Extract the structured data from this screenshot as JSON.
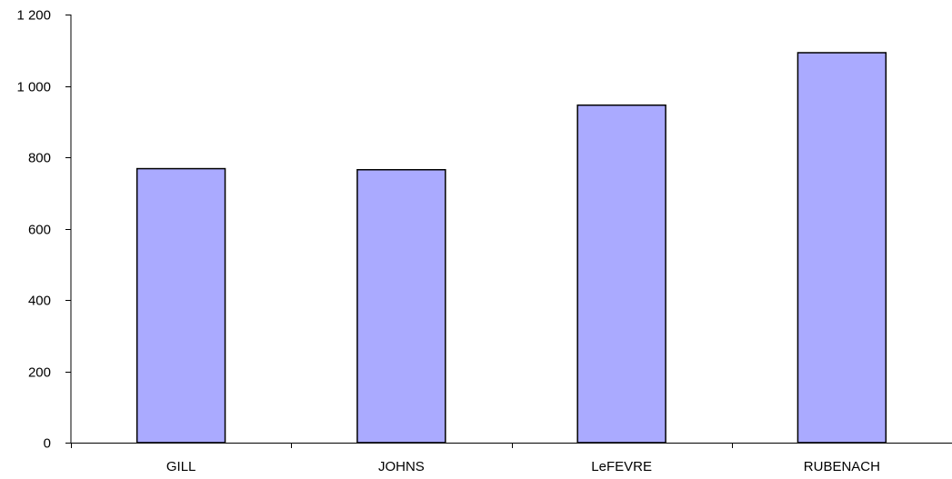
{
  "chart_data": {
    "type": "bar",
    "title": "",
    "xlabel": "",
    "ylabel": "",
    "categories": [
      "GILL",
      "JOHNS",
      "LeFEVRE",
      "RUBENACH"
    ],
    "values": [
      768,
      765,
      946,
      1093
    ],
    "ylim": [
      0,
      1200
    ],
    "y_ticks": [
      0,
      200,
      400,
      600,
      800,
      1000,
      1200
    ],
    "y_tick_labels": [
      "0",
      "200",
      "400",
      "600",
      "800",
      "1 000",
      "1 200"
    ],
    "grid": false,
    "legend": "none",
    "bar_color": "#aaaaff",
    "bar_edge_color": "#000000",
    "axis_color": "#000000"
  }
}
